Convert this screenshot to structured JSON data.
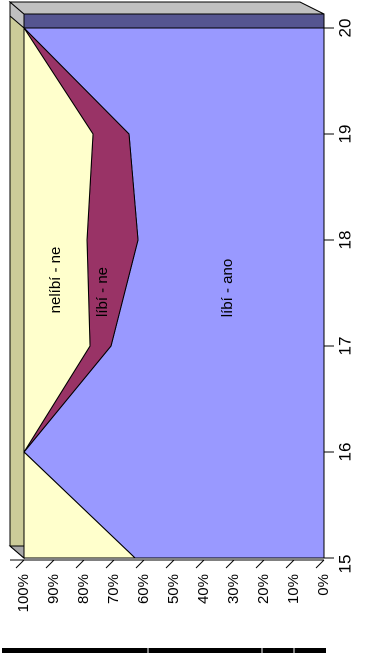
{
  "chart_data": {
    "type": "area",
    "stacked": "percent",
    "orientation": "rotated-90-clockwise",
    "view": "3d",
    "x": [
      "15",
      "16",
      "17",
      "18",
      "19",
      "20"
    ],
    "ylim": [
      0,
      100
    ],
    "y_ticks": [
      "0%",
      "10%",
      "20%",
      "30%",
      "40%",
      "50%",
      "60%",
      "70%",
      "80%",
      "90%",
      "100%"
    ],
    "series": [
      {
        "name": "líbí - ano",
        "values": [
          63,
          100,
          71,
          62,
          65,
          100
        ]
      },
      {
        "name": "líbí - ne",
        "values": [
          0,
          0,
          7,
          17,
          12,
          0
        ]
      },
      {
        "name": "nelíbí - ne",
        "values": [
          37,
          0,
          22,
          21,
          23,
          0
        ]
      }
    ],
    "colors": {
      "líbí - ano": "#9999ff",
      "líbí - ne": "#993366",
      "nelíbí - ne": "#ffffcc",
      "wall": "#c0c0c0",
      "floor": "#cccc99",
      "top_band": "#555590"
    }
  }
}
